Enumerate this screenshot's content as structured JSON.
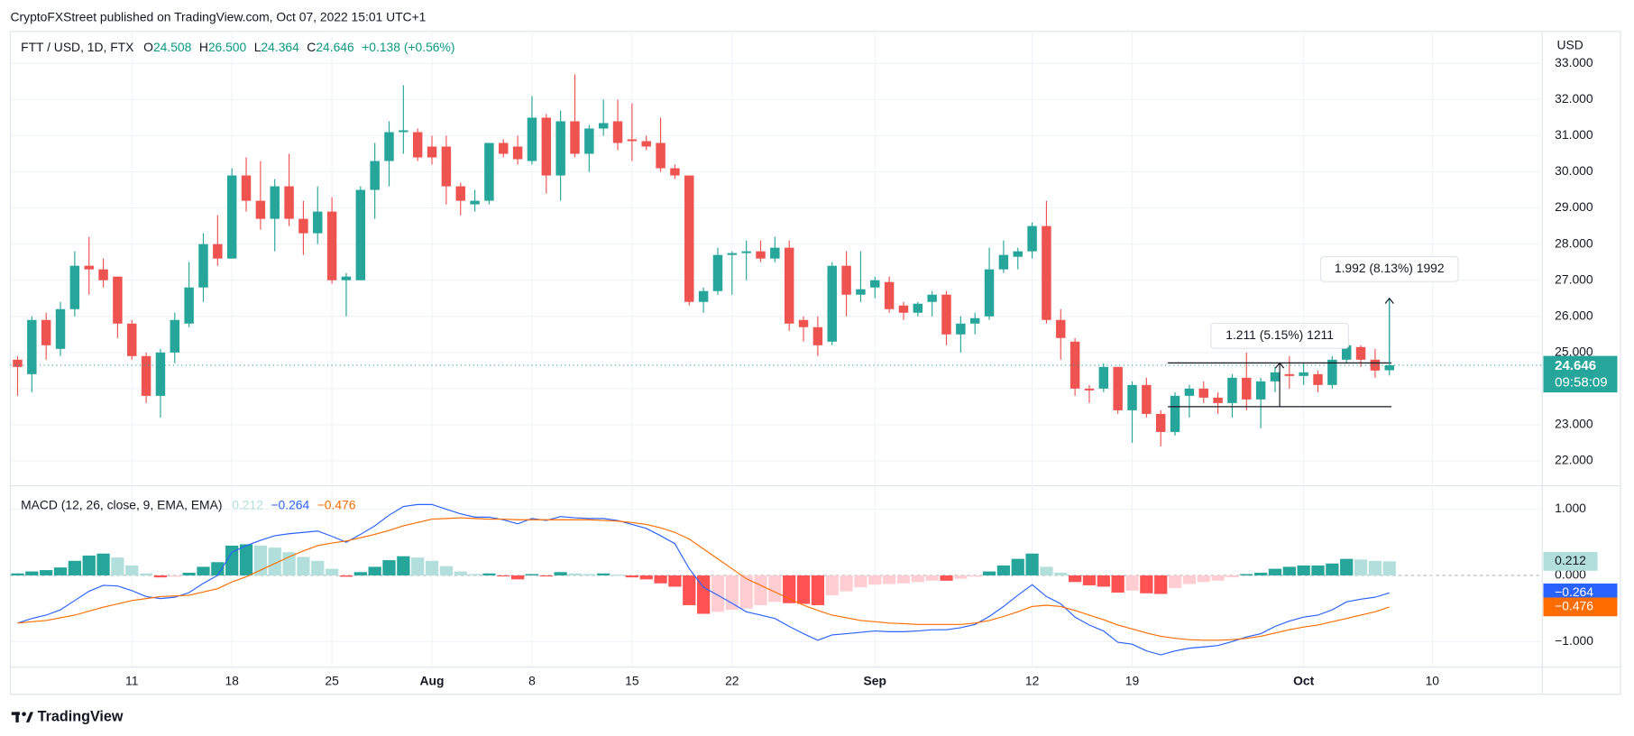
{
  "header_text": "CryptoFXStreet published on TradingView.com, Oct 07, 2022 15:01 UTC+1",
  "footer": {
    "brand": "TradingView"
  },
  "chart_data": [
    {
      "type": "candlestick",
      "title": "FTT / USD, 1D, FTX",
      "ohlc_legend": [
        {
          "key": "O",
          "value": "24.508"
        },
        {
          "key": "H",
          "value": "26.500"
        },
        {
          "key": "L",
          "value": "24.364"
        },
        {
          "key": "C",
          "value": "24.646"
        }
      ],
      "change": "+0.138 (+0.56%)",
      "unit": "USD",
      "countdown": "09:58:09",
      "up_color": "#26a69a",
      "down_color": "#ef5350",
      "xlim": [
        -0.5,
        106.7
      ],
      "ylim": [
        21.31,
        33.89
      ],
      "yticks": [
        {
          "value": 22,
          "label": "22.000"
        },
        {
          "value": 23,
          "label": "23.000"
        },
        {
          "value": 24,
          "label": "24.000"
        },
        {
          "value": 25,
          "label": "25.000"
        },
        {
          "value": 26,
          "label": "26.000"
        },
        {
          "value": 27,
          "label": "27.000"
        },
        {
          "value": 28,
          "label": "28.000"
        },
        {
          "value": 29,
          "label": "29.000"
        },
        {
          "value": 30,
          "label": "30.000"
        },
        {
          "value": 31,
          "label": "31.000"
        },
        {
          "value": 32,
          "label": "32.000"
        },
        {
          "value": 33,
          "label": "33.000"
        }
      ],
      "grid": true,
      "open": [
        24.8,
        24.4,
        25.9,
        25.1,
        26.2,
        27.4,
        27.3,
        27.1,
        25.8,
        24.9,
        23.8,
        25.0,
        25.8,
        26.8,
        28.0,
        27.6,
        29.9,
        29.2,
        28.7,
        29.6,
        28.7,
        28.3,
        28.9,
        27.0,
        27.0,
        29.5,
        30.3,
        31.1,
        31.1,
        30.7,
        30.7,
        29.6,
        29.1,
        29.2,
        30.8,
        30.7,
        30.3,
        31.5,
        29.9,
        31.4,
        30.5,
        31.2,
        31.4,
        30.9,
        30.85,
        30.8,
        30.1,
        29.9,
        26.4,
        26.7,
        27.7,
        27.75,
        27.8,
        27.6,
        27.9,
        25.9,
        25.7,
        25.3,
        27.4,
        26.6,
        26.8,
        26.95,
        26.3,
        26.1,
        26.4,
        26.6,
        25.5,
        25.8,
        26.0,
        27.3,
        27.65,
        27.8,
        28.5,
        25.9,
        25.3,
        24.0,
        24.0,
        24.6,
        23.4,
        24.1,
        23.3,
        22.8,
        23.8,
        24.0,
        23.75,
        23.6,
        24.3,
        23.7,
        24.2,
        24.4,
        24.35,
        24.4,
        24.1,
        24.8,
        25.15,
        24.8,
        24.508
      ],
      "high": [
        24.9,
        26.0,
        26.1,
        26.4,
        27.8,
        28.2,
        27.6,
        27.1,
        25.9,
        25.0,
        25.1,
        26.1,
        27.5,
        28.3,
        28.8,
        30.1,
        30.4,
        30.3,
        29.8,
        30.5,
        29.2,
        29.6,
        29.3,
        27.2,
        29.6,
        30.8,
        31.4,
        32.4,
        31.2,
        31.0,
        31.0,
        29.7,
        29.5,
        30.8,
        30.9,
        31.0,
        32.1,
        31.6,
        31.7,
        32.7,
        31.3,
        32.0,
        32.0,
        31.9,
        31.0,
        31.5,
        30.2,
        29.9,
        26.8,
        27.9,
        27.8,
        28.1,
        28.1,
        28.2,
        28.1,
        26.0,
        26.0,
        27.5,
        27.8,
        27.8,
        27.1,
        27.1,
        26.4,
        26.4,
        26.7,
        26.7,
        26.0,
        26.1,
        27.9,
        28.1,
        27.9,
        28.6,
        29.2,
        26.2,
        25.4,
        24.1,
        24.7,
        24.6,
        24.2,
        24.3,
        23.4,
        23.9,
        24.1,
        24.2,
        23.9,
        24.4,
        25.0,
        24.3,
        24.6,
        24.9,
        24.7,
        24.5,
        24.9,
        25.4,
        25.2,
        25.1,
        26.5
      ],
      "low": [
        23.8,
        23.9,
        24.8,
        24.9,
        26.0,
        26.6,
        26.8,
        25.4,
        24.8,
        23.6,
        23.2,
        24.7,
        25.7,
        26.4,
        27.4,
        27.6,
        28.9,
        28.4,
        27.8,
        28.5,
        27.7,
        28.0,
        26.9,
        26.0,
        27.0,
        28.7,
        29.6,
        30.5,
        30.3,
        30.2,
        29.1,
        28.8,
        28.9,
        29.1,
        30.4,
        30.2,
        30.2,
        29.4,
        29.2,
        30.4,
        30.0,
        31.0,
        30.6,
        30.3,
        30.6,
        30.0,
        29.8,
        26.3,
        26.1,
        26.6,
        26.6,
        27.0,
        27.5,
        27.5,
        25.6,
        25.3,
        24.9,
        25.2,
        26.0,
        26.4,
        26.5,
        26.1,
        25.9,
        26.0,
        26.0,
        25.2,
        25.0,
        25.5,
        25.9,
        27.2,
        27.3,
        27.6,
        25.8,
        24.8,
        23.8,
        23.6,
        23.9,
        23.3,
        22.5,
        23.2,
        22.4,
        22.7,
        23.2,
        23.6,
        23.3,
        23.2,
        23.4,
        22.9,
        23.9,
        24.0,
        24.1,
        23.9,
        24.0,
        24.7,
        24.6,
        24.3,
        24.364
      ],
      "close": [
        24.6,
        25.9,
        25.2,
        26.2,
        27.4,
        27.3,
        27.0,
        25.8,
        24.9,
        23.8,
        25.0,
        25.9,
        26.8,
        28.0,
        27.6,
        29.9,
        29.2,
        28.7,
        29.6,
        28.7,
        28.3,
        28.9,
        27.0,
        27.1,
        29.5,
        30.3,
        31.1,
        31.15,
        30.4,
        30.4,
        29.6,
        29.2,
        29.2,
        30.8,
        30.5,
        30.35,
        31.5,
        29.9,
        31.4,
        30.5,
        31.2,
        31.35,
        30.8,
        30.85,
        30.7,
        30.1,
        29.9,
        26.4,
        26.7,
        27.7,
        27.75,
        27.8,
        27.6,
        27.9,
        25.8,
        25.7,
        25.2,
        27.4,
        26.6,
        26.75,
        27.0,
        26.2,
        26.1,
        26.35,
        26.6,
        25.5,
        25.8,
        25.95,
        27.3,
        27.7,
        27.8,
        28.5,
        25.9,
        25.4,
        24.0,
        23.95,
        24.6,
        23.4,
        24.1,
        23.3,
        22.8,
        23.8,
        24.0,
        23.75,
        23.6,
        24.3,
        23.7,
        24.2,
        24.45,
        24.35,
        24.45,
        24.1,
        24.8,
        25.2,
        24.8,
        24.5,
        24.646
      ],
      "measures": [
        {
          "label": "1.211 (5.15%) 1211",
          "from": 23.5,
          "to": 24.711,
          "x": [
            86,
            96
          ]
        },
        {
          "label": "1.992 (8.13%) 1992",
          "from": 24.508,
          "to": 26.5,
          "x": [
            96,
            96
          ]
        }
      ]
    },
    {
      "type": "macd",
      "title": "MACD (12, 26, close, 9, EMA, EMA)",
      "ylim": [
        -1.386,
        1.354
      ],
      "yticks": [
        {
          "value": 1,
          "label": "1.000"
        },
        {
          "value": 0,
          "label": "0.000"
        },
        {
          "value": -1,
          "label": "−1.000"
        }
      ],
      "xticks": [
        {
          "value": 8,
          "label": "11"
        },
        {
          "value": 15,
          "label": "18"
        },
        {
          "value": 22,
          "label": "25"
        },
        {
          "value": 29,
          "label": "Aug"
        },
        {
          "value": 36,
          "label": "8"
        },
        {
          "value": 43,
          "label": "15"
        },
        {
          "value": 50,
          "label": "22"
        },
        {
          "value": 60,
          "label": "Sep"
        },
        {
          "value": 71,
          "label": "12"
        },
        {
          "value": 78,
          "label": "19"
        },
        {
          "value": 90,
          "label": "Oct"
        },
        {
          "value": 99,
          "label": "10"
        }
      ],
      "series": [
        {
          "kind": "histogram",
          "colors": {
            "up_rising": "#26a69a",
            "up_falling": "#b2dfdb",
            "down_falling": "#ff5252",
            "down_rising": "#ffcdd2"
          },
          "last_label": "0.212",
          "values": [
            0.03,
            0.06,
            0.08,
            0.12,
            0.22,
            0.3,
            0.33,
            0.27,
            0.15,
            0.03,
            -0.03,
            -0.02,
            0.04,
            0.13,
            0.2,
            0.45,
            0.47,
            0.45,
            0.42,
            0.35,
            0.28,
            0.22,
            0.1,
            -0.02,
            0.05,
            0.13,
            0.23,
            0.29,
            0.27,
            0.22,
            0.14,
            0.06,
            0.02,
            0.03,
            -0.01,
            -0.06,
            0.02,
            -0.01,
            0.05,
            0.03,
            0.02,
            0.03,
            0.01,
            -0.03,
            -0.06,
            -0.12,
            -0.17,
            -0.45,
            -0.58,
            -0.55,
            -0.52,
            -0.5,
            -0.45,
            -0.4,
            -0.42,
            -0.43,
            -0.45,
            -0.3,
            -0.24,
            -0.18,
            -0.14,
            -0.13,
            -0.12,
            -0.1,
            -0.08,
            -0.08,
            -0.05,
            -0.02,
            0.06,
            0.15,
            0.25,
            0.33,
            0.13,
            0.04,
            -0.1,
            -0.15,
            -0.17,
            -0.26,
            -0.23,
            -0.27,
            -0.28,
            -0.19,
            -0.13,
            -0.1,
            -0.08,
            -0.03,
            0.02,
            0.04,
            0.1,
            0.13,
            0.15,
            0.15,
            0.18,
            0.25,
            0.24,
            0.22,
            0.212
          ]
        },
        {
          "kind": "line",
          "color": "#2962ff",
          "last_label": "−0.264",
          "values": [
            -0.72,
            -0.65,
            -0.6,
            -0.52,
            -0.38,
            -0.24,
            -0.15,
            -0.16,
            -0.23,
            -0.32,
            -0.35,
            -0.33,
            -0.26,
            -0.12,
            0.0,
            0.35,
            0.45,
            0.53,
            0.6,
            0.63,
            0.65,
            0.67,
            0.59,
            0.5,
            0.62,
            0.75,
            0.91,
            1.04,
            1.07,
            1.07,
            1.0,
            0.93,
            0.88,
            0.88,
            0.84,
            0.78,
            0.86,
            0.83,
            0.89,
            0.87,
            0.86,
            0.86,
            0.83,
            0.77,
            0.71,
            0.6,
            0.48,
            0.1,
            -0.18,
            -0.3,
            -0.42,
            -0.55,
            -0.6,
            -0.65,
            -0.77,
            -0.88,
            -0.98,
            -0.9,
            -0.88,
            -0.86,
            -0.84,
            -0.85,
            -0.85,
            -0.84,
            -0.82,
            -0.82,
            -0.79,
            -0.74,
            -0.62,
            -0.47,
            -0.3,
            -0.14,
            -0.32,
            -0.43,
            -0.63,
            -0.75,
            -0.84,
            -1.01,
            -1.04,
            -1.14,
            -1.2,
            -1.14,
            -1.1,
            -1.08,
            -1.06,
            -1.0,
            -0.93,
            -0.88,
            -0.77,
            -0.69,
            -0.63,
            -0.6,
            -0.52,
            -0.4,
            -0.36,
            -0.33,
            -0.264
          ]
        },
        {
          "kind": "line",
          "color": "#ff6d00",
          "last_label": "−0.476",
          "values": [
            -0.72,
            -0.7,
            -0.68,
            -0.64,
            -0.6,
            -0.54,
            -0.48,
            -0.43,
            -0.38,
            -0.35,
            -0.32,
            -0.31,
            -0.3,
            -0.25,
            -0.2,
            -0.1,
            -0.02,
            0.08,
            0.18,
            0.28,
            0.37,
            0.45,
            0.49,
            0.52,
            0.57,
            0.62,
            0.68,
            0.75,
            0.8,
            0.85,
            0.86,
            0.87,
            0.86,
            0.85,
            0.85,
            0.84,
            0.84,
            0.84,
            0.84,
            0.84,
            0.84,
            0.83,
            0.82,
            0.8,
            0.77,
            0.72,
            0.65,
            0.55,
            0.4,
            0.25,
            0.1,
            -0.05,
            -0.15,
            -0.25,
            -0.35,
            -0.45,
            -0.53,
            -0.6,
            -0.64,
            -0.68,
            -0.7,
            -0.72,
            -0.73,
            -0.74,
            -0.74,
            -0.74,
            -0.74,
            -0.72,
            -0.68,
            -0.62,
            -0.55,
            -0.47,
            -0.45,
            -0.47,
            -0.53,
            -0.6,
            -0.67,
            -0.75,
            -0.81,
            -0.87,
            -0.92,
            -0.95,
            -0.97,
            -0.98,
            -0.98,
            -0.97,
            -0.95,
            -0.92,
            -0.87,
            -0.82,
            -0.78,
            -0.75,
            -0.7,
            -0.65,
            -0.6,
            -0.55,
            -0.476
          ]
        }
      ]
    }
  ]
}
